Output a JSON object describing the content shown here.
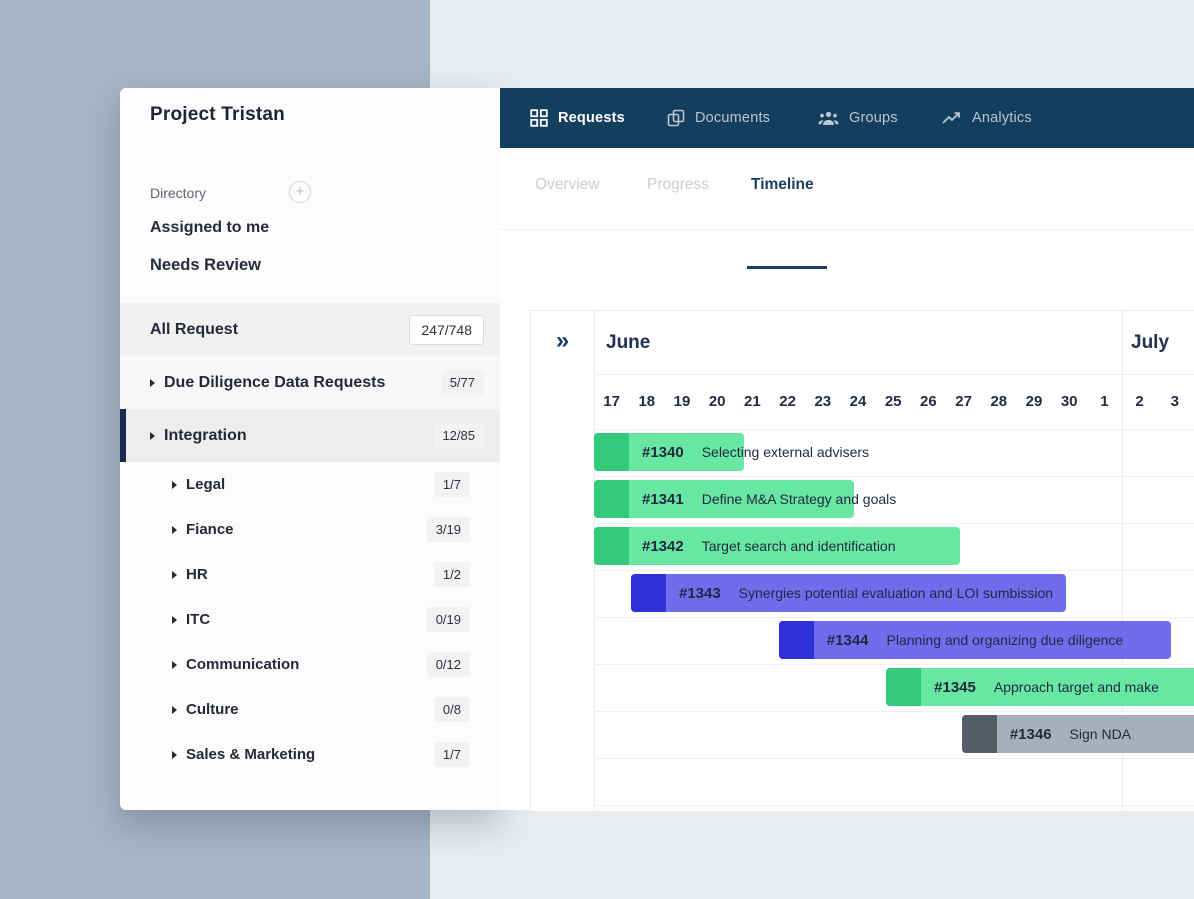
{
  "colors": {
    "nav_background": "#143e5e",
    "accent_navy": "#1c3d64",
    "selected_indicator": "#1d2c4e",
    "bg_outer": "#a6b5c3",
    "bg_inner": "#e8ecef",
    "palette": {
      "green": {
        "bar": "#68e7a2",
        "cap": "#33ca7c"
      },
      "purple": {
        "bar": "#6f6dec",
        "cap": "#2f30da"
      },
      "gray": {
        "bar": "#a7b0ba",
        "cap": "#545c65"
      }
    }
  },
  "sidebar": {
    "title": "Project Tristan",
    "directory": {
      "label": "Directory",
      "add_icon": "plus-circle-icon"
    },
    "links": [
      {
        "label": "Assigned to me"
      },
      {
        "label": "Needs Review"
      }
    ],
    "sections": [
      {
        "label": "All Request",
        "count": "247/748",
        "level": 0,
        "arrow": false,
        "selected": false,
        "badge_style": "outlined",
        "bg": "#f1f1f1"
      },
      {
        "label": "Due Diligence Data Requests",
        "count": "5/77",
        "level": 0,
        "arrow": true,
        "selected": false,
        "badge_style": "filled",
        "bg": "#f8f8f8"
      },
      {
        "label": "Integration",
        "count": "12/85",
        "level": 0,
        "arrow": true,
        "selected": true,
        "badge_style": "filled",
        "bg": "#ededed"
      },
      {
        "label": "Legal",
        "count": "1/7",
        "level": 1,
        "arrow": true,
        "selected": false,
        "badge_style": "filled",
        "bg": ""
      },
      {
        "label": "Fiance",
        "count": "3/19",
        "level": 1,
        "arrow": true,
        "selected": false,
        "badge_style": "filled",
        "bg": ""
      },
      {
        "label": "HR",
        "count": "1/2",
        "level": 1,
        "arrow": true,
        "selected": false,
        "badge_style": "filled",
        "bg": ""
      },
      {
        "label": "ITC",
        "count": "0/19",
        "level": 1,
        "arrow": true,
        "selected": false,
        "badge_style": "filled",
        "bg": ""
      },
      {
        "label": "Communication",
        "count": "0/12",
        "level": 1,
        "arrow": true,
        "selected": false,
        "badge_style": "filled",
        "bg": ""
      },
      {
        "label": "Culture",
        "count": "0/8",
        "level": 1,
        "arrow": true,
        "selected": false,
        "badge_style": "filled",
        "bg": ""
      },
      {
        "label": "Sales & Marketing",
        "count": "1/7",
        "level": 1,
        "arrow": true,
        "selected": false,
        "badge_style": "filled",
        "bg": ""
      }
    ]
  },
  "nav": {
    "items": [
      {
        "label": "Requests",
        "icon": "grid-icon",
        "active": true
      },
      {
        "label": "Documents",
        "icon": "documents-icon",
        "active": false
      },
      {
        "label": "Groups",
        "icon": "groups-icon",
        "active": false
      },
      {
        "label": "Analytics",
        "icon": "analytics-icon",
        "active": false
      }
    ]
  },
  "tabs": [
    {
      "label": "Overview",
      "active": false
    },
    {
      "label": "Progress",
      "active": false
    },
    {
      "label": "Timeline",
      "active": true
    }
  ],
  "timeline": {
    "collapse_glyph": "»",
    "months": [
      {
        "label": "June",
        "days": [
          "17",
          "18",
          "19",
          "20",
          "21",
          "22",
          "23",
          "24",
          "25",
          "26",
          "27",
          "28",
          "29",
          "30",
          "1"
        ]
      },
      {
        "label": "July",
        "days": [
          "2",
          "3"
        ]
      }
    ],
    "tasks": [
      {
        "id": "#1340",
        "title": "Selecting external advisers",
        "color": "green",
        "row": 0,
        "start_day": 0,
        "duration_days": 4.25
      },
      {
        "id": "#1341",
        "title": "Define M&A Strategy and goals",
        "color": "green",
        "row": 1,
        "start_day": 0,
        "duration_days": 7.4
      },
      {
        "id": "#1342",
        "title": "Target search and identification",
        "color": "green",
        "row": 2,
        "start_day": 0,
        "duration_days": 10.4
      },
      {
        "id": "#1343",
        "title": "Synergies potential evaluation and LOI sumbission",
        "color": "purple",
        "row": 3,
        "start_day": 1.05,
        "duration_days": 12.35
      },
      {
        "id": "#1344",
        "title": "Planning and organizing due diligence",
        "color": "purple",
        "row": 4,
        "start_day": 5.25,
        "duration_days": 11.15
      },
      {
        "id": "#1345",
        "title": "Approach target and make",
        "color": "green",
        "row": 5,
        "start_day": 8.3,
        "duration_days": 10.5
      },
      {
        "id": "#1346",
        "title": "Sign NDA",
        "color": "gray",
        "row": 6,
        "start_day": 10.45,
        "duration_days": 8.5
      }
    ]
  }
}
